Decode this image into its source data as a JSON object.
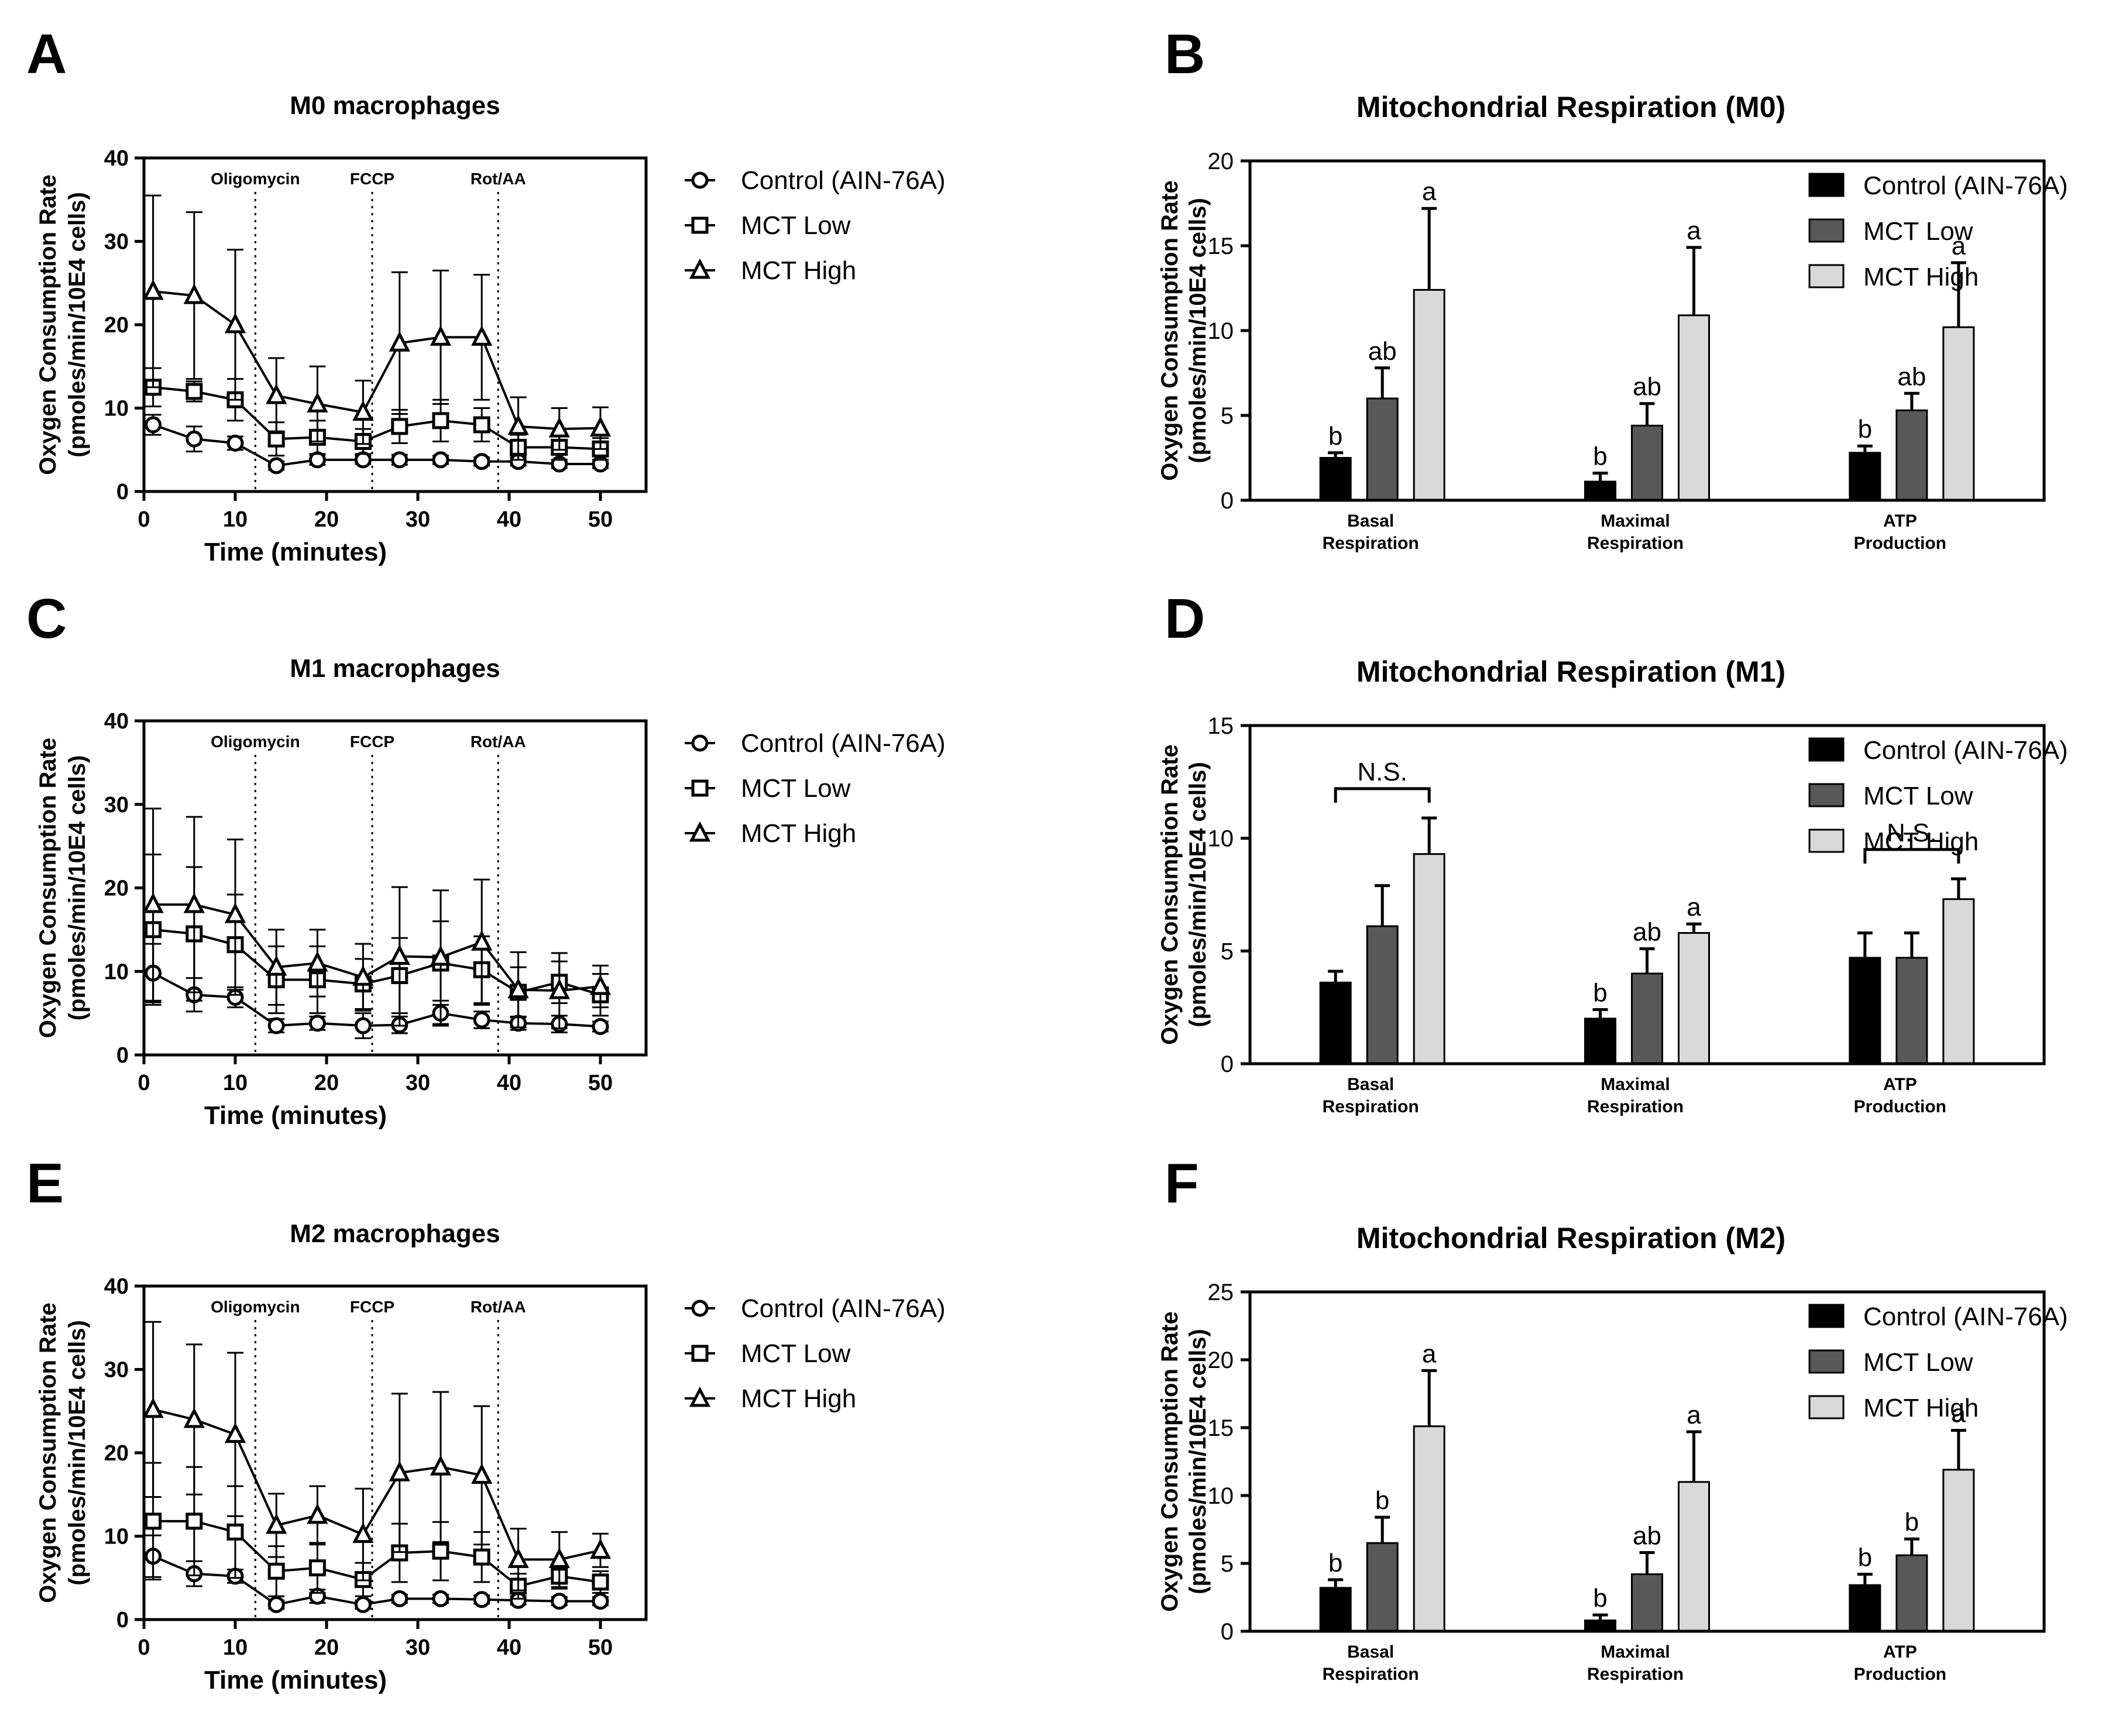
{
  "chart_data": [
    {
      "panel": "A",
      "type": "line",
      "title": "M0 macrophages",
      "xlabel": "Time (minutes)",
      "ylabel": [
        "Oxygen Consumption Rate",
        "(pmoles/min/10E4 cells)"
      ],
      "xlim": [
        0,
        55
      ],
      "ylim": [
        0,
        40
      ],
      "xticks": [
        "0",
        "10",
        "20",
        "30",
        "40",
        "50"
      ],
      "yticks": [
        "0",
        "10",
        "20",
        "30",
        "40"
      ],
      "injections": [
        {
          "label": "Oligomycin",
          "x": 12.2
        },
        {
          "label": "FCCP",
          "x": 25
        },
        {
          "label": "Rot/AA",
          "x": 38.8
        }
      ],
      "x": [
        1,
        5.5,
        10,
        14.5,
        19,
        24,
        28,
        32.5,
        37,
        41,
        45.5,
        50
      ],
      "series": [
        {
          "name": "Control (AIN-76A)",
          "marker": "circle",
          "values": [
            8,
            6.3,
            5.8,
            3.1,
            3.8,
            3.8,
            3.8,
            3.8,
            3.6,
            3.6,
            3.3,
            3.3
          ],
          "errors": [
            1.2,
            1.5,
            0.8,
            0.5,
            0.6,
            0.5,
            0.6,
            0.5,
            0.5,
            0.5,
            0.5,
            0.5
          ]
        },
        {
          "name": "MCT Low",
          "marker": "square",
          "values": [
            12.5,
            12,
            11,
            6.3,
            6.5,
            6,
            7.8,
            8.5,
            8,
            5.3,
            5.3,
            5.1
          ],
          "errors": [
            2.3,
            1.2,
            2.5,
            2,
            2,
            1.5,
            2,
            2.5,
            2,
            1.5,
            1.5,
            1.3
          ]
        },
        {
          "name": "MCT High",
          "marker": "triangle",
          "values": [
            24,
            23.5,
            20,
            11.5,
            10.5,
            9.5,
            17.8,
            18.5,
            18.5,
            7.8,
            7.5,
            7.6
          ],
          "errors": [
            11.5,
            10,
            9,
            4.5,
            4.5,
            3.8,
            8.5,
            8,
            7.5,
            3.5,
            2.5,
            2.5
          ]
        }
      ]
    },
    {
      "panel": "B",
      "type": "bar",
      "title": "Mitochondrial Respiration (M0)",
      "ylabel": [
        "Oxygen Consumption Rate",
        "(pmoles/min/10E4 cells)"
      ],
      "ylim": [
        0,
        20
      ],
      "yticks": [
        "0",
        "5",
        "10",
        "15",
        "20"
      ],
      "categories": [
        [
          "Basal",
          "Respiration"
        ],
        [
          "Maximal",
          "Respiration"
        ],
        [
          "ATP",
          "Production"
        ]
      ],
      "series": [
        {
          "name": "Control (AIN-76A)",
          "color": "#000000",
          "values": [
            2.5,
            1.1,
            2.8
          ],
          "errors": [
            0.3,
            0.5,
            0.4
          ],
          "labels": [
            "b",
            "b",
            "b"
          ]
        },
        {
          "name": "MCT Low",
          "color": "#585858",
          "values": [
            6,
            4.4,
            5.3
          ],
          "errors": [
            1.8,
            1.3,
            1
          ],
          "labels": [
            "ab",
            "ab",
            "ab"
          ]
        },
        {
          "name": "MCT High",
          "color": "#d9d9d9",
          "values": [
            12.4,
            10.9,
            10.2
          ],
          "errors": [
            4.8,
            4,
            3.8
          ],
          "labels": [
            "a",
            "a",
            "a"
          ]
        }
      ],
      "brackets": []
    },
    {
      "panel": "C",
      "type": "line",
      "title": "M1 macrophages",
      "xlabel": "Time (minutes)",
      "ylabel": [
        "Oxygen Consumption Rate",
        "(pmoles/min/10E4 cells)"
      ],
      "xlim": [
        0,
        55
      ],
      "ylim": [
        0,
        40
      ],
      "xticks": [
        "0",
        "10",
        "20",
        "30",
        "40",
        "50"
      ],
      "yticks": [
        "0",
        "10",
        "20",
        "30",
        "40"
      ],
      "injections": [
        {
          "label": "Oligomycin",
          "x": 12.2
        },
        {
          "label": "FCCP",
          "x": 25
        },
        {
          "label": "Rot/AA",
          "x": 38.8
        }
      ],
      "x": [
        1,
        5.5,
        10,
        14.5,
        19,
        24,
        28,
        32.5,
        37,
        41,
        45.5,
        50
      ],
      "series": [
        {
          "name": "Control (AIN-76A)",
          "marker": "circle",
          "values": [
            9.8,
            7.2,
            6.9,
            3.5,
            3.8,
            3.5,
            3.6,
            5,
            4.2,
            3.8,
            3.7,
            3.4
          ],
          "errors": [
            3.5,
            2,
            1.2,
            0.8,
            0.8,
            1.5,
            1,
            1.5,
            1,
            0.8,
            1,
            0.6
          ]
        },
        {
          "name": "MCT Low",
          "marker": "square",
          "values": [
            15,
            14.5,
            13.2,
            9,
            9,
            8.5,
            9.5,
            11,
            10.2,
            7.5,
            8.7,
            7.2
          ],
          "errors": [
            9,
            8,
            6,
            4,
            4,
            3,
            4.5,
            5,
            4,
            3,
            2.5,
            2.5
          ]
        },
        {
          "name": "MCT High",
          "marker": "triangle",
          "values": [
            18,
            18,
            16.8,
            10.5,
            11,
            9.3,
            11.8,
            11.7,
            13.5,
            7.8,
            7.7,
            8.2
          ],
          "errors": [
            11.5,
            10.5,
            9,
            4.5,
            4,
            4,
            8.3,
            8,
            7.5,
            4.5,
            4.5,
            2.5
          ]
        }
      ]
    },
    {
      "panel": "D",
      "type": "bar",
      "title": "Mitochondrial Respiration (M1)",
      "ylabel": [
        "Oxygen Consumption Rate",
        "(pmoles/min/10E4 cells)"
      ],
      "ylim": [
        0,
        15
      ],
      "yticks": [
        "0",
        "5",
        "10",
        "15"
      ],
      "categories": [
        [
          "Basal",
          "Respiration"
        ],
        [
          "Maximal",
          "Respiration"
        ],
        [
          "ATP",
          "Production"
        ]
      ],
      "series": [
        {
          "name": "Control (AIN-76A)",
          "color": "#000000",
          "values": [
            3.6,
            2,
            4.7
          ],
          "errors": [
            0.5,
            0.4,
            1.1
          ],
          "labels": [
            "",
            "b",
            ""
          ]
        },
        {
          "name": "MCT Low",
          "color": "#585858",
          "values": [
            6.1,
            4,
            4.7
          ],
          "errors": [
            1.8,
            1.1,
            1.1
          ],
          "labels": [
            "",
            "ab",
            ""
          ]
        },
        {
          "name": "MCT High",
          "color": "#d9d9d9",
          "values": [
            9.3,
            5.8,
            7.3
          ],
          "errors": [
            1.6,
            0.4,
            0.9
          ],
          "labels": [
            "",
            "a",
            ""
          ]
        }
      ],
      "brackets": [
        {
          "category": 0,
          "label": "N.S.",
          "y": 12.2
        },
        {
          "category": 2,
          "label": "N.S.",
          "y": 9.5
        }
      ]
    },
    {
      "panel": "E",
      "type": "line",
      "title": "M2 macrophages",
      "xlabel": "Time (minutes)",
      "ylabel": [
        "Oxygen Consumption Rate",
        "(pmoles/min/10E4 cells)"
      ],
      "xlim": [
        0,
        55
      ],
      "ylim": [
        0,
        40
      ],
      "xticks": [
        "0",
        "10",
        "20",
        "30",
        "40",
        "50"
      ],
      "yticks": [
        "0",
        "10",
        "20",
        "30",
        "40"
      ],
      "injections": [
        {
          "label": "Oligomycin",
          "x": 12.2
        },
        {
          "label": "FCCP",
          "x": 25
        },
        {
          "label": "Rot/AA",
          "x": 38.8
        }
      ],
      "x": [
        1,
        5.5,
        10,
        14.5,
        19,
        24,
        28,
        32.5,
        37,
        41,
        45.5,
        50
      ],
      "series": [
        {
          "name": "Control (AIN-76A)",
          "marker": "circle",
          "values": [
            7.6,
            5.5,
            5.2,
            1.8,
            2.8,
            1.8,
            2.5,
            2.5,
            2.4,
            2.3,
            2.2,
            2.2
          ],
          "errors": [
            2.5,
            1.5,
            0.8,
            0.5,
            0.8,
            0.5,
            0.5,
            0.5,
            0.5,
            0.5,
            0.5,
            0.5
          ]
        },
        {
          "name": "MCT Low",
          "marker": "square",
          "values": [
            11.8,
            11.8,
            10.5,
            5.8,
            6.2,
            4.8,
            8,
            8.2,
            7.5,
            4,
            5.2,
            4.5
          ],
          "errors": [
            7,
            6.5,
            5.5,
            3,
            3,
            2,
            3.5,
            3.5,
            3,
            1.5,
            1.5,
            1.3
          ]
        },
        {
          "name": "MCT High",
          "marker": "triangle",
          "values": [
            25.2,
            24,
            22.2,
            11.3,
            12.5,
            10.2,
            17.6,
            18.3,
            17.3,
            7.2,
            7.2,
            8.3
          ],
          "errors": [
            10.5,
            9,
            9.8,
            3.8,
            3.5,
            5.5,
            9.5,
            9,
            8.3,
            3.7,
            3.3,
            2
          ]
        }
      ]
    },
    {
      "panel": "F",
      "type": "bar",
      "title": "Mitochondrial Respiration (M2)",
      "ylabel": [
        "Oxygen Consumption Rate",
        "(pmoles/min/10E4 cells)"
      ],
      "ylim": [
        0,
        25
      ],
      "yticks": [
        "0",
        "5",
        "10",
        "15",
        "20",
        "25"
      ],
      "categories": [
        [
          "Basal",
          "Respiration"
        ],
        [
          "Maximal",
          "Respiration"
        ],
        [
          "ATP",
          "Production"
        ]
      ],
      "series": [
        {
          "name": "Control (AIN-76A)",
          "color": "#000000",
          "values": [
            3.2,
            0.8,
            3.4
          ],
          "errors": [
            0.6,
            0.4,
            0.8
          ],
          "labels": [
            "b",
            "b",
            "b"
          ]
        },
        {
          "name": "MCT Low",
          "color": "#585858",
          "values": [
            6.5,
            4.2,
            5.6
          ],
          "errors": [
            1.9,
            1.6,
            1.2
          ],
          "labels": [
            "b",
            "ab",
            "b"
          ]
        },
        {
          "name": "MCT High",
          "color": "#d9d9d9",
          "values": [
            15.1,
            11,
            11.9
          ],
          "errors": [
            4.1,
            3.7,
            2.9
          ],
          "labels": [
            "a",
            "a",
            "a"
          ]
        }
      ],
      "brackets": []
    }
  ]
}
